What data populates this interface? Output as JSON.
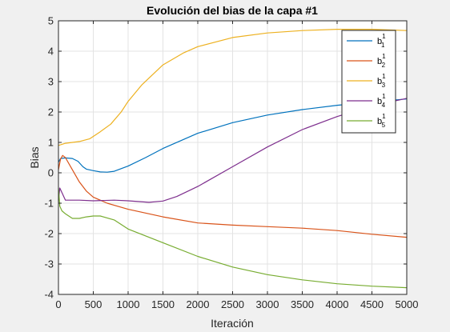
{
  "chart_data": {
    "type": "line",
    "title": "Evolución del bias de la capa #1",
    "xlabel": "Iteración",
    "ylabel": "Bias",
    "xlim": [
      0,
      5000
    ],
    "ylim": [
      -4,
      5
    ],
    "xticks": [
      0,
      500,
      1000,
      1500,
      2000,
      2500,
      3000,
      3500,
      4000,
      4500,
      5000
    ],
    "yticks": [
      -4,
      -3,
      -2,
      -1,
      0,
      1,
      2,
      3,
      4,
      5
    ],
    "grid": true,
    "legend_position": "top-right",
    "series": [
      {
        "name": "b1",
        "legend_base": "b",
        "legend_sup": "1",
        "legend_sub": "1",
        "color": "#0072BD",
        "x": [
          0,
          30,
          100,
          200,
          280,
          350,
          400,
          500,
          600,
          700,
          800,
          1000,
          1250,
          1500,
          2000,
          2500,
          3000,
          3500,
          4000,
          4500,
          5000
        ],
        "y": [
          0.35,
          0.47,
          0.49,
          0.47,
          0.38,
          0.2,
          0.12,
          0.07,
          0.03,
          0.02,
          0.05,
          0.22,
          0.5,
          0.8,
          1.3,
          1.65,
          1.9,
          2.08,
          2.22,
          2.33,
          2.43
        ]
      },
      {
        "name": "b2",
        "legend_base": "b",
        "legend_sup": "1",
        "legend_sub": "2",
        "color": "#D95319",
        "x": [
          0,
          30,
          60,
          100,
          200,
          300,
          400,
          500,
          700,
          1000,
          1500,
          2000,
          2500,
          3000,
          3500,
          4000,
          4500,
          5000
        ],
        "y": [
          0.1,
          0.45,
          0.57,
          0.5,
          0.1,
          -0.3,
          -0.6,
          -0.8,
          -1.0,
          -1.2,
          -1.45,
          -1.65,
          -1.72,
          -1.77,
          -1.82,
          -1.9,
          -2.02,
          -2.12
        ]
      },
      {
        "name": "b3",
        "legend_base": "b",
        "legend_sup": "1",
        "legend_sub": "3",
        "color": "#EDB120",
        "x": [
          0,
          100,
          300,
          450,
          600,
          750,
          900,
          1000,
          1200,
          1500,
          1800,
          2000,
          2500,
          3000,
          3500,
          4000,
          4500,
          5000
        ],
        "y": [
          0.9,
          0.97,
          1.03,
          1.12,
          1.35,
          1.6,
          2.0,
          2.35,
          2.9,
          3.55,
          3.95,
          4.15,
          4.45,
          4.6,
          4.68,
          4.72,
          4.72,
          4.68
        ]
      },
      {
        "name": "b4",
        "legend_base": "b",
        "legend_sup": "1",
        "legend_sub": "4",
        "color": "#7E2F8E",
        "x": [
          0,
          20,
          100,
          300,
          500,
          800,
          1000,
          1300,
          1500,
          1700,
          2000,
          2500,
          3000,
          3500,
          4000,
          4500,
          5000
        ],
        "y": [
          -0.9,
          -0.5,
          -0.9,
          -0.9,
          -0.92,
          -0.9,
          -0.92,
          -0.97,
          -0.93,
          -0.78,
          -0.45,
          0.2,
          0.85,
          1.42,
          1.85,
          2.2,
          2.45
        ]
      },
      {
        "name": "b5",
        "legend_base": "b",
        "legend_sup": "1",
        "legend_sub": "5",
        "color": "#77AC30",
        "x": [
          0,
          20,
          50,
          100,
          200,
          300,
          400,
          500,
          600,
          800,
          1000,
          1500,
          2000,
          2500,
          3000,
          3500,
          4000,
          4500,
          5000
        ],
        "y": [
          -0.5,
          -1.1,
          -1.25,
          -1.35,
          -1.5,
          -1.5,
          -1.45,
          -1.42,
          -1.42,
          -1.55,
          -1.85,
          -2.3,
          -2.75,
          -3.1,
          -3.35,
          -3.52,
          -3.65,
          -3.73,
          -3.78
        ]
      }
    ]
  }
}
